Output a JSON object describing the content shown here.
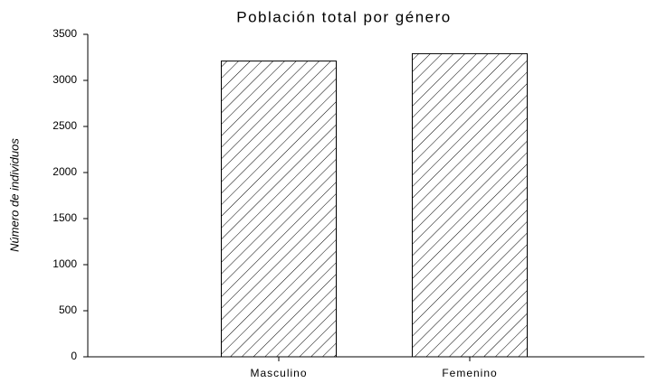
{
  "chart_data": {
    "type": "bar",
    "title": "Población total por género",
    "y_label": "Número de individuos",
    "categories": [
      "Masculino",
      "Femenino"
    ],
    "values": [
      3210,
      3290
    ],
    "color": "#000000",
    "ylim": [
      0,
      3500
    ],
    "yticks": [
      0,
      500,
      1000,
      1500,
      2000,
      2500,
      3000,
      3500
    ]
  }
}
